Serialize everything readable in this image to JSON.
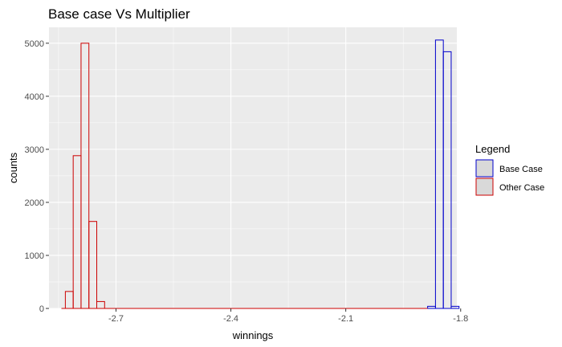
{
  "chart_data": {
    "type": "histogram",
    "title": "Base case Vs Multiplier",
    "xlabel": "winnings",
    "ylabel": "counts",
    "xlim": [
      -2.875,
      -1.81
    ],
    "ylim": [
      0,
      5300
    ],
    "xticks": [
      -2.7,
      -2.4,
      -2.1,
      -1.8
    ],
    "xtick_labels": [
      "-2.7",
      "-2.4",
      "-2.1",
      "-1.8"
    ],
    "yticks": [
      0,
      1000,
      2000,
      3000,
      4000,
      5000
    ],
    "ytick_labels": [
      "0",
      "1000",
      "2000",
      "3000",
      "4000",
      "5000"
    ],
    "grid": true,
    "legend": {
      "title": "Legend",
      "position": "right",
      "fill": "#d9d9d9",
      "entries": [
        {
          "label": "Base Case",
          "color": "#0000cc"
        },
        {
          "label": "Other Case",
          "color": "#cc0000"
        }
      ]
    },
    "bin_width": 0.0205,
    "series": [
      {
        "name": "Base Case",
        "color": "#0000cc",
        "bins": [
          {
            "x": -1.876,
            "count": 40
          },
          {
            "x": -1.8555,
            "count": 5060
          },
          {
            "x": -1.835,
            "count": 4840
          },
          {
            "x": -1.8145,
            "count": 40
          }
        ]
      },
      {
        "name": "Other Case",
        "color": "#cc0000",
        "bins": [
          {
            "x": -2.822,
            "count": 320
          },
          {
            "x": -2.8015,
            "count": 2880
          },
          {
            "x": -2.781,
            "count": 5000
          },
          {
            "x": -2.7605,
            "count": 1640
          },
          {
            "x": -2.74,
            "count": 130
          }
        ],
        "baseline": [
          -2.8425,
          -1.8865
        ]
      }
    ]
  }
}
